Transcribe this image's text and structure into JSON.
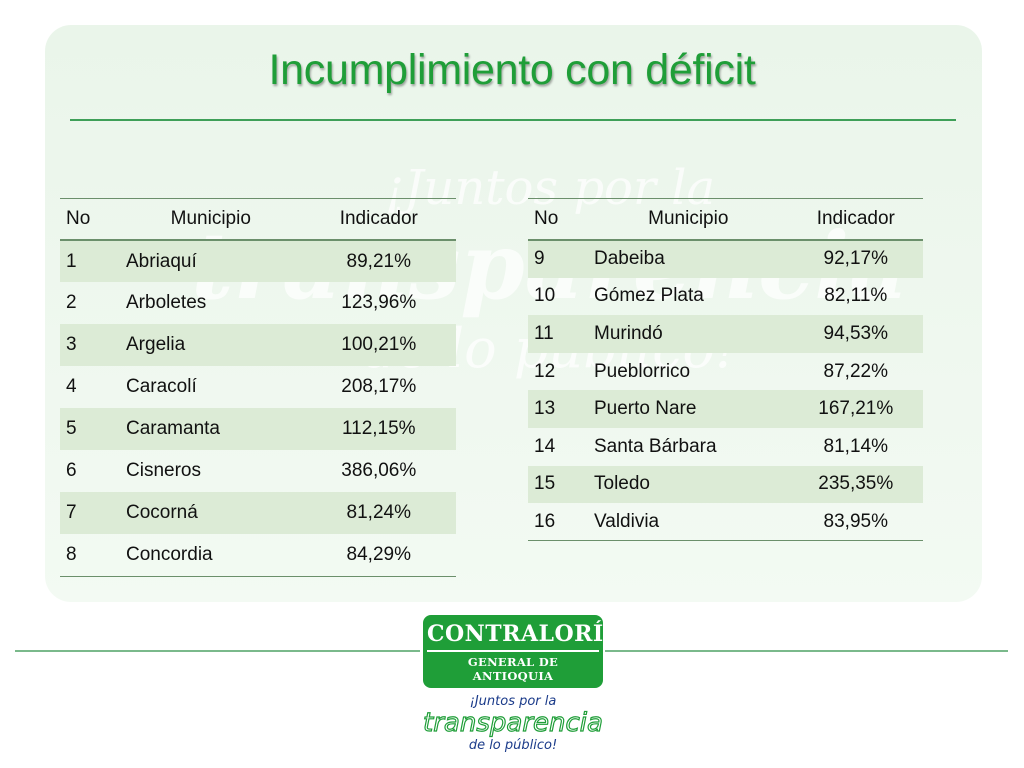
{
  "title": "Incumplimiento con déficit",
  "table_headers": {
    "no": "No",
    "municipio": "Municipio",
    "indicador": "Indicador"
  },
  "rows_left": [
    {
      "no": "1",
      "municipio": "Abriaquí",
      "indicador": "89,21%"
    },
    {
      "no": "2",
      "municipio": "Arboletes",
      "indicador": "123,96%"
    },
    {
      "no": "3",
      "municipio": "Argelia",
      "indicador": "100,21%"
    },
    {
      "no": "4",
      "municipio": "Caracolí",
      "indicador": "208,17%"
    },
    {
      "no": "5",
      "municipio": "Caramanta",
      "indicador": "112,15%"
    },
    {
      "no": "6",
      "municipio": "Cisneros",
      "indicador": "386,06%"
    },
    {
      "no": "7",
      "municipio": "Cocorná",
      "indicador": "81,24%"
    },
    {
      "no": "8",
      "municipio": "Concordia",
      "indicador": "84,29%"
    }
  ],
  "rows_right": [
    {
      "no": "9",
      "municipio": "Dabeiba",
      "indicador": "92,17%"
    },
    {
      "no": "10",
      "municipio": "Gómez Plata",
      "indicador": "82,11%"
    },
    {
      "no": "11",
      "municipio": "Murindó",
      "indicador": "94,53%"
    },
    {
      "no": "12",
      "municipio": "Pueblorrico",
      "indicador": "87,22%"
    },
    {
      "no": "13",
      "municipio": "Puerto Nare",
      "indicador": "167,21%"
    },
    {
      "no": "14",
      "municipio": "Santa Bárbara",
      "indicador": "81,14%"
    },
    {
      "no": "15",
      "municipio": "Toledo",
      "indicador": "235,35%"
    },
    {
      "no": "16",
      "municipio": "Valdivia",
      "indicador": "83,95%"
    }
  ],
  "watermark": {
    "line1": "¡Juntos por la",
    "line2": "transparencia",
    "line3": "de lo público!"
  },
  "logo": {
    "name": "CONTRALORÍA",
    "subtitle": "GENERAL DE ANTIOQUIA",
    "slogan_line1": "¡Juntos por la",
    "slogan_line2": "transparencia",
    "slogan_line3": "de lo público!"
  },
  "colors": {
    "accent": "#1f9e38",
    "row_shade": "#dcebd6",
    "panel": "#eaf5ea"
  }
}
